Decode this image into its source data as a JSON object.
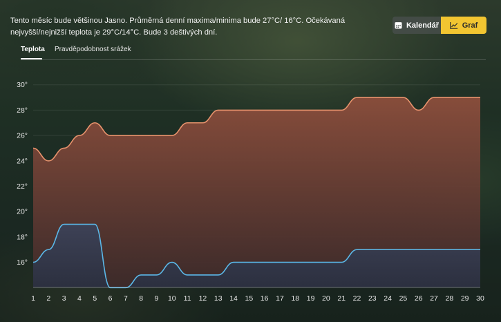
{
  "summary": {
    "text": "Tento měsíc bude většinou Jasno. Průměrná denní maxima/minima bude 27°C/ 16°C. Očekávaná nejvyšší/nejnižší teplota je 29°C/14°C. Bude 3 deštivých dní."
  },
  "view_toggle": {
    "calendar_label": "Kalendář",
    "calendar_icon": "calendar-icon",
    "graph_label": "Graf",
    "graph_icon": "trend-chart-icon",
    "active": "graph",
    "accent_color": "#f2c531"
  },
  "tabs": [
    {
      "label": "Teplota",
      "active": true
    },
    {
      "label": "Pravděpodobnost srážek",
      "active": false
    }
  ],
  "chart_data": {
    "type": "area",
    "x": [
      1,
      2,
      3,
      4,
      5,
      6,
      7,
      8,
      9,
      10,
      11,
      12,
      13,
      14,
      15,
      16,
      17,
      18,
      19,
      20,
      21,
      22,
      23,
      24,
      25,
      26,
      27,
      28,
      29,
      30
    ],
    "x_tick_labels": [
      "1",
      "2",
      "3",
      "4",
      "5",
      "6",
      "7",
      "8",
      "9",
      "10",
      "11",
      "12",
      "13",
      "14",
      "15",
      "16",
      "17",
      "18",
      "19",
      "20",
      "21",
      "22",
      "23",
      "24",
      "25",
      "26",
      "27",
      "28",
      "29",
      "30"
    ],
    "y_tick_labels": [
      "16°",
      "18°",
      "20°",
      "22°",
      "24°",
      "26°",
      "28°",
      "30°"
    ],
    "ylim": [
      14,
      31
    ],
    "grid": true,
    "series": [
      {
        "values": [
          25,
          24,
          25,
          26,
          27,
          26,
          26,
          26,
          26,
          26,
          27,
          27,
          28,
          28,
          28,
          28,
          28,
          28,
          28,
          28,
          28,
          29,
          29,
          29,
          29,
          28,
          29,
          29,
          29,
          29
        ],
        "color": "#e8936d",
        "fill_top": "#8c4e3c",
        "fill_bottom": "#3d2a2a"
      },
      {
        "values": [
          16,
          17,
          19,
          19,
          19,
          14,
          14,
          15,
          15,
          16,
          15,
          15,
          15,
          16,
          16,
          16,
          16,
          16,
          16,
          16,
          16,
          17,
          17,
          17,
          17,
          17,
          17,
          17,
          17,
          17
        ],
        "color": "#5bb8e8",
        "fill_top": "#3c4258",
        "fill_bottom": "#2b3040"
      }
    ]
  }
}
